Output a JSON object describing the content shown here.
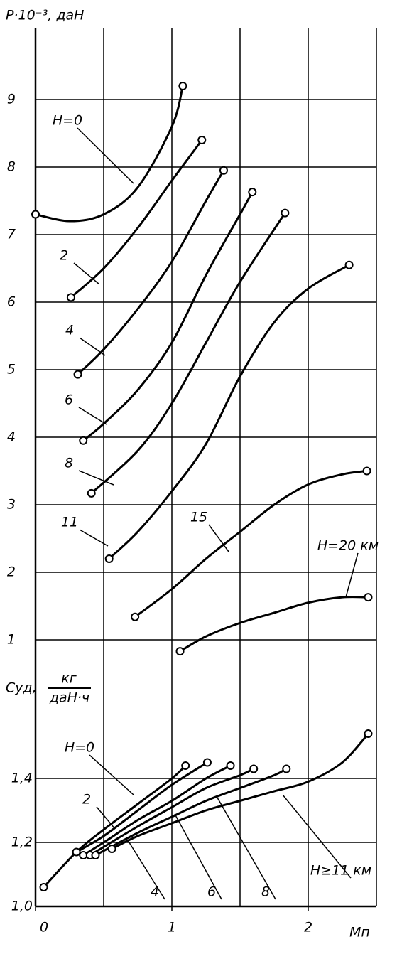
{
  "chart_data": [
    {
      "type": "line",
      "ylabel": "P·10⁻³, даН",
      "xlim": [
        0,
        2.5
      ],
      "xgrid": [
        0,
        0.5,
        1,
        1.5,
        2,
        2.5
      ],
      "ylim": [
        0.5,
        10
      ],
      "yticks": [
        1,
        2,
        3,
        4,
        5,
        6,
        7,
        8,
        9
      ],
      "grid": true,
      "color": "#000000",
      "series": [
        {
          "name": "H=0",
          "x": [
            0,
            0.25,
            0.5,
            0.75,
            1.0,
            1.08
          ],
          "values": [
            7.3,
            7.2,
            7.3,
            7.7,
            8.6,
            9.2
          ]
        },
        {
          "name": "2",
          "x": [
            0.26,
            0.5,
            0.75,
            1.0,
            1.22
          ],
          "values": [
            6.07,
            6.5,
            7.1,
            7.8,
            8.4
          ]
        },
        {
          "name": "4",
          "x": [
            0.31,
            0.5,
            0.75,
            1.0,
            1.25,
            1.38
          ],
          "values": [
            4.93,
            5.3,
            5.9,
            6.6,
            7.5,
            7.95
          ]
        },
        {
          "name": "6",
          "x": [
            0.35,
            0.5,
            0.75,
            1.0,
            1.25,
            1.5,
            1.59
          ],
          "values": [
            3.95,
            4.2,
            4.7,
            5.4,
            6.4,
            7.3,
            7.63
          ]
        },
        {
          "name": "8",
          "x": [
            0.41,
            0.75,
            1.0,
            1.25,
            1.5,
            1.83
          ],
          "values": [
            3.17,
            3.8,
            4.5,
            5.4,
            6.3,
            7.32
          ]
        },
        {
          "name": "11",
          "x": [
            0.54,
            0.75,
            1.0,
            1.25,
            1.5,
            1.75,
            2.0,
            2.3
          ],
          "values": [
            2.2,
            2.6,
            3.2,
            3.9,
            4.9,
            5.7,
            6.2,
            6.55
          ]
        },
        {
          "name": "15",
          "x": [
            0.73,
            1.0,
            1.25,
            1.5,
            1.75,
            2.0,
            2.25,
            2.43
          ],
          "values": [
            1.34,
            1.75,
            2.2,
            2.6,
            3.0,
            3.3,
            3.45,
            3.5
          ]
        },
        {
          "name": "H=20 км",
          "x": [
            1.06,
            1.25,
            1.5,
            1.75,
            2.0,
            2.25,
            2.44
          ],
          "values": [
            0.83,
            1.05,
            1.25,
            1.4,
            1.55,
            1.63,
            1.63
          ]
        }
      ]
    },
    {
      "type": "line",
      "ylabel": "Cуд,",
      "ylabel_num": "кг",
      "ylabel_den": "даН·ч",
      "xlabel": "Mп",
      "xlim": [
        0,
        2.5
      ],
      "xticks": [
        0,
        1,
        2
      ],
      "ylim": [
        1.0,
        1.65
      ],
      "yticks": [
        {
          "value": 1.0,
          "label": "1,0"
        },
        {
          "value": 1.2,
          "label": "1,2"
        },
        {
          "value": 1.4,
          "label": "1,4"
        }
      ],
      "grid": true,
      "color": "#000000",
      "series": [
        {
          "name": "H=0",
          "x": [
            0.06,
            0.3,
            0.5,
            0.75,
            1.0,
            1.1
          ],
          "values": [
            1.06,
            1.17,
            1.24,
            1.32,
            1.4,
            1.44
          ]
        },
        {
          "name": "2",
          "x": [
            0.3,
            0.5,
            0.75,
            1.0,
            1.26
          ],
          "values": [
            1.17,
            1.22,
            1.3,
            1.38,
            1.45
          ]
        },
        {
          "name": "4",
          "x": [
            0.35,
            0.5,
            0.75,
            1.0,
            1.25,
            1.43
          ],
          "values": [
            1.16,
            1.2,
            1.27,
            1.33,
            1.4,
            1.44
          ]
        },
        {
          "name": "6",
          "x": [
            0.4,
            0.75,
            1.0,
            1.25,
            1.5,
            1.6
          ],
          "values": [
            1.16,
            1.25,
            1.31,
            1.37,
            1.41,
            1.43
          ]
        },
        {
          "name": "8",
          "x": [
            0.44,
            0.75,
            1.0,
            1.25,
            1.5,
            1.75,
            1.84
          ],
          "values": [
            1.16,
            1.23,
            1.28,
            1.33,
            1.37,
            1.41,
            1.43
          ]
        },
        {
          "name": "H≥11 км",
          "x": [
            0.56,
            0.75,
            1.0,
            1.25,
            1.5,
            1.75,
            2.0,
            2.25,
            2.44
          ],
          "values": [
            1.18,
            1.22,
            1.26,
            1.3,
            1.33,
            1.36,
            1.39,
            1.45,
            1.54
          ]
        }
      ]
    }
  ]
}
